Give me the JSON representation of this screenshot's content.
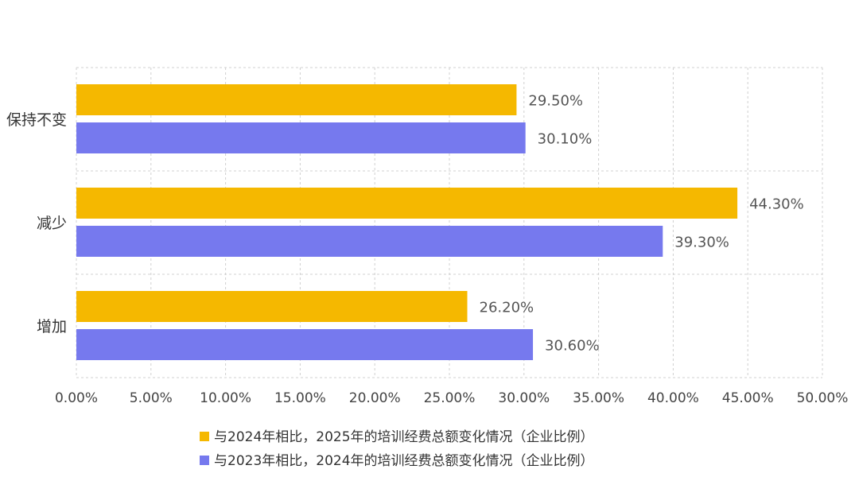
{
  "chart_data": {
    "type": "bar",
    "orientation": "horizontal",
    "categories": [
      "保持不变",
      "减少",
      "增加"
    ],
    "series": [
      {
        "name": "与2024年相比，2025年的培训经费总额变化情况（企业比例）",
        "color": "#F5B800",
        "values": [
          29.5,
          44.3,
          26.2
        ],
        "labels": [
          "29.50%",
          "44.30%",
          "26.20%"
        ]
      },
      {
        "name": "与2023年相比，2024年的培训经费总额变化情况（企业比例）",
        "color": "#7679EE",
        "values": [
          30.1,
          39.3,
          30.6
        ],
        "labels": [
          "30.10%",
          "39.30%",
          "30.60%"
        ]
      }
    ],
    "xlim": [
      0,
      50
    ],
    "xticks": [
      0,
      5,
      10,
      15,
      20,
      25,
      30,
      35,
      40,
      45,
      50
    ],
    "xtick_labels": [
      "0.00%",
      "5.00%",
      "10.00%",
      "15.00%",
      "20.00%",
      "25.00%",
      "30.00%",
      "35.00%",
      "40.00%",
      "45.00%",
      "50.00%"
    ],
    "title": "",
    "xlabel": "",
    "ylabel": "",
    "grid": true,
    "legend_position": "bottom"
  }
}
